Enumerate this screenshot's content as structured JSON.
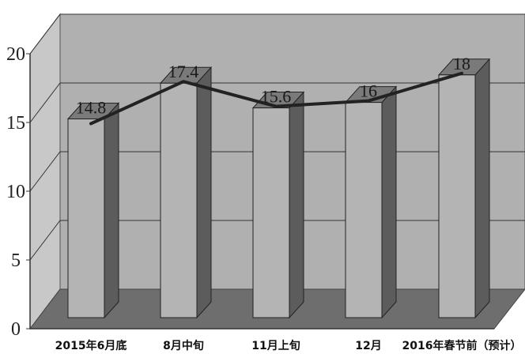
{
  "chart_data": {
    "type": "bar",
    "categories": [
      "2015年6月底",
      "8月中旬",
      "11月上旬",
      "12月",
      "2016年春节前（预计）"
    ],
    "series": [
      {
        "values": [
          14.8,
          17.4,
          15.6,
          16,
          18
        ]
      }
    ],
    "data_labels": [
      "14.8",
      "17.4",
      "15.6",
      "16",
      "18"
    ],
    "overlay_line": true,
    "y_ticks": [
      "0",
      "5",
      "10",
      "15",
      "20"
    ],
    "ylim": [
      0,
      20
    ],
    "grid": true,
    "legend": "none",
    "style": "3d",
    "colors": {
      "back_wall": "#b0b0b0",
      "left_wall": "#c8c8c8",
      "floor": "#6e6e6e",
      "bar_front": "#b4b4b4",
      "bar_side": "#5c5c5c",
      "bar_top": "#7a7a7a",
      "line": "#222222"
    }
  }
}
